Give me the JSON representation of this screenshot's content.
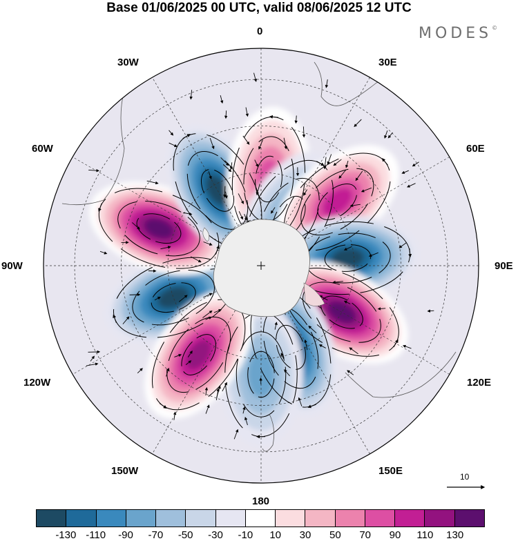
{
  "title": "Base 01/06/2025 00 UTC, valid 08/06/2025 12 UTC",
  "brand": "MODES",
  "brand_mark": "©",
  "longitude_labels": {
    "lon_0": "0",
    "lon_30e": "30E",
    "lon_60e": "60E",
    "lon_90e": "90E",
    "lon_120e": "120E",
    "lon_150e": "150E",
    "lon_180": "180",
    "lon_150w": "150W",
    "lon_120w": "120W",
    "lon_90w": "90W",
    "lon_60w": "60W",
    "lon_30w": "30W"
  },
  "reference_vector": {
    "label": "10"
  },
  "colorbar": {
    "colors": [
      "#1d4a63",
      "#1f6a9a",
      "#3a89bd",
      "#6aa4cc",
      "#9fbfdc",
      "#c9d6e8",
      "#e6e6f2",
      "#ffffff",
      "#fbdde0",
      "#f4b6c4",
      "#ec82ad",
      "#dd4fa3",
      "#c21f94",
      "#93127f",
      "#5c0f6e"
    ],
    "ticks": [
      "-130",
      "-110",
      "-90",
      "-70",
      "-50",
      "-30",
      "-10",
      "10",
      "30",
      "50",
      "70",
      "90",
      "110",
      "130"
    ]
  },
  "anomaly_centers": [
    {
      "lon": -110,
      "lat": 60,
      "value": -120
    },
    {
      "lon": -70,
      "lat": 55,
      "value": 125
    },
    {
      "lon": -30,
      "lat": 62,
      "value": -115
    },
    {
      "lon": 5,
      "lat": 62,
      "value": 80
    },
    {
      "lon": 30,
      "lat": 72,
      "value": -55
    },
    {
      "lon": 50,
      "lat": 58,
      "value": 100
    },
    {
      "lon": 85,
      "lat": 62,
      "value": -115
    },
    {
      "lon": 120,
      "lat": 60,
      "value": 125
    },
    {
      "lon": 160,
      "lat": 62,
      "value": -105
    },
    {
      "lon": 180,
      "lat": 55,
      "value": -55
    },
    {
      "lon": -145,
      "lat": 55,
      "value": 110
    }
  ]
}
